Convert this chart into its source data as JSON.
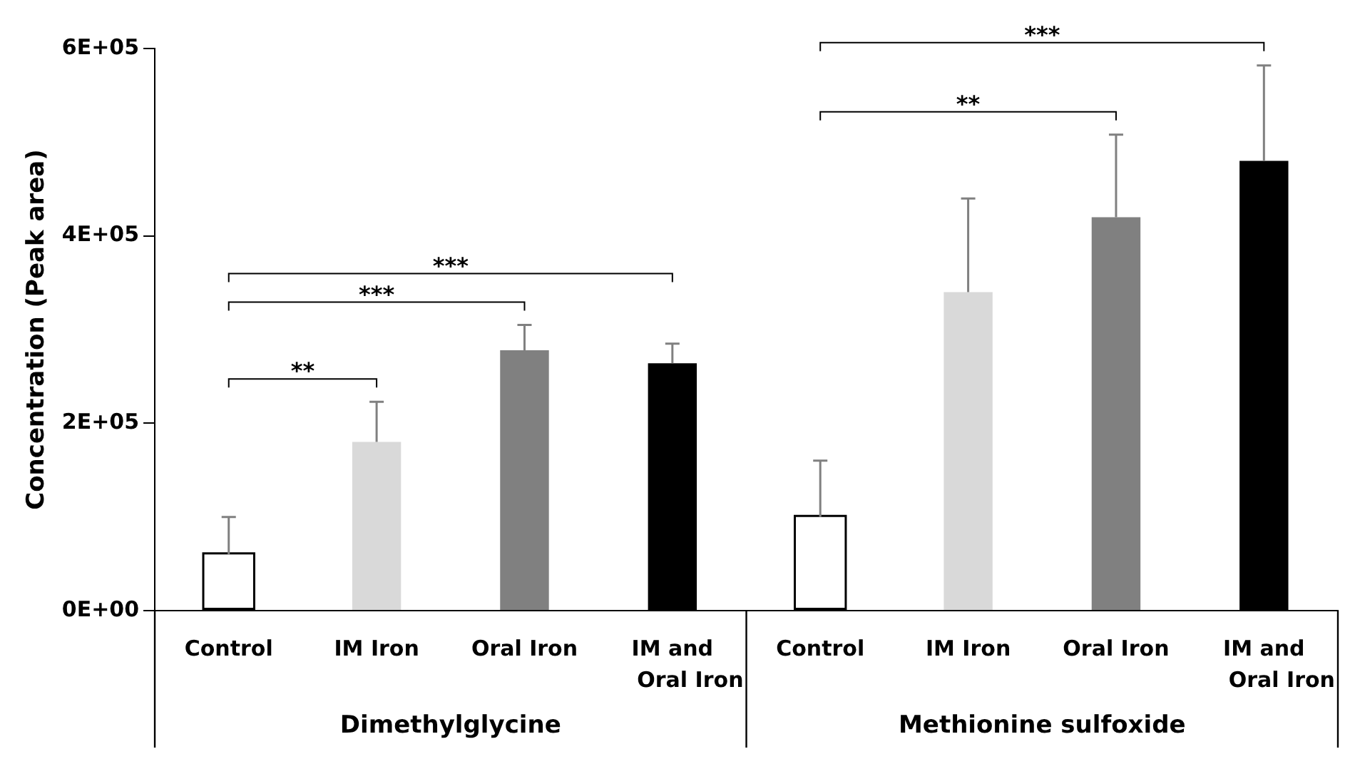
{
  "chart_data": {
    "type": "bar",
    "ylabel": "Concentration (Peak area)",
    "categories": [
      "Dimethylglycine",
      "Methionine sulfoxide"
    ],
    "series": [
      {
        "name": "Control",
        "color": "#ffffff",
        "values": [
          60000,
          100000
        ],
        "errors": [
          40000,
          60000
        ]
      },
      {
        "name": "IM Iron",
        "color": "#d9d9d9",
        "values": [
          180000,
          340000
        ],
        "errors": [
          43000,
          100000
        ]
      },
      {
        "name": "Oral Iron",
        "color": "#808080",
        "values": [
          278000,
          420000
        ],
        "errors": [
          27000,
          88000
        ]
      },
      {
        "name": "IM and Oral Iron",
        "color": "#000000",
        "values": [
          264000,
          480000
        ],
        "errors": [
          21000,
          102000
        ]
      }
    ],
    "ylim": [
      0,
      600000
    ],
    "yticks": [
      {
        "value": 0,
        "label": "0E+00"
      },
      {
        "value": 200000,
        "label": "2E+05"
      },
      {
        "value": 400000,
        "label": "4E+05"
      },
      {
        "value": 600000,
        "label": "6E+05"
      }
    ],
    "grid": false,
    "annotations": [
      "**",
      "***",
      "***",
      "**",
      "***"
    ]
  }
}
